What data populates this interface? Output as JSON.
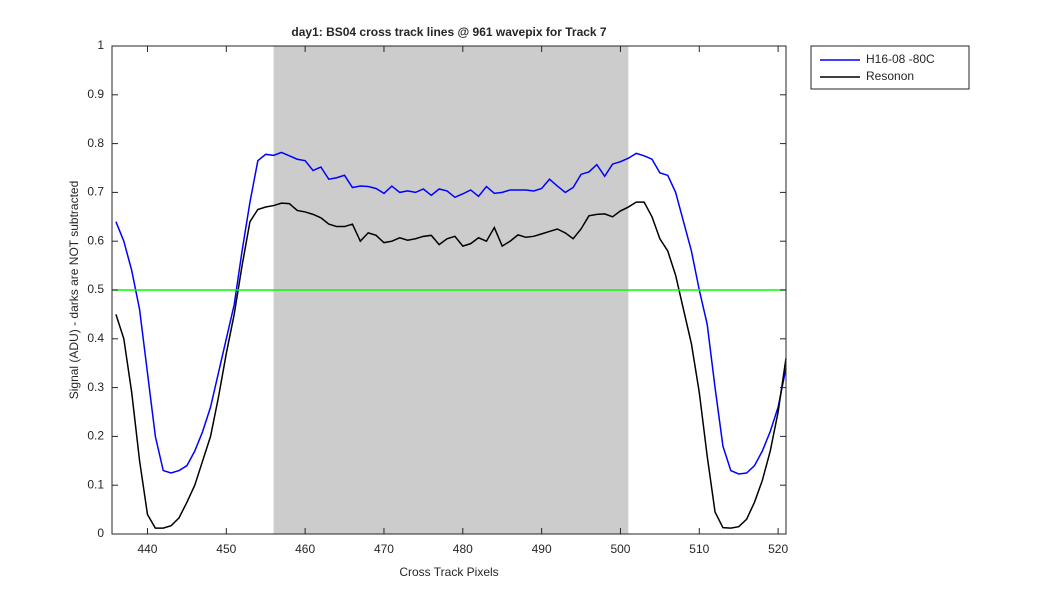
{
  "chart_data": {
    "type": "line",
    "title": "day1: BS04  cross track lines @ 961 wavepix for Track 7",
    "xlabel": "Cross Track Pixels",
    "ylabel": "Signal (ADU) - darks are NOT subtracted",
    "x": [
      436,
      437,
      438,
      439,
      440,
      441,
      442,
      443,
      444,
      445,
      446,
      447,
      448,
      449,
      450,
      451,
      452,
      453,
      454,
      455,
      456,
      457,
      458,
      459,
      460,
      461,
      462,
      463,
      464,
      465,
      466,
      467,
      468,
      469,
      470,
      471,
      472,
      473,
      474,
      475,
      476,
      477,
      478,
      479,
      480,
      481,
      482,
      483,
      484,
      485,
      486,
      487,
      488,
      489,
      490,
      491,
      492,
      493,
      494,
      495,
      496,
      497,
      498,
      499,
      500,
      501,
      502,
      503,
      504,
      505,
      506,
      507,
      508,
      509,
      510,
      511,
      512,
      513,
      514,
      515,
      516,
      517,
      518,
      519,
      520,
      521
    ],
    "series": [
      {
        "name": "H16-08 -80C",
        "color": "#0000ff",
        "values": [
          0.64,
          0.6,
          0.54,
          0.46,
          0.33,
          0.2,
          0.13,
          0.125,
          0.13,
          0.14,
          0.17,
          0.21,
          0.26,
          0.33,
          0.4,
          0.47,
          0.58,
          0.68,
          0.765,
          0.778,
          0.776,
          0.782,
          0.775,
          0.768,
          0.765,
          0.745,
          0.752,
          0.727,
          0.73,
          0.735,
          0.71,
          0.713,
          0.712,
          0.708,
          0.698,
          0.713,
          0.7,
          0.703,
          0.7,
          0.707,
          0.694,
          0.707,
          0.703,
          0.69,
          0.697,
          0.705,
          0.692,
          0.712,
          0.698,
          0.7,
          0.705,
          0.705,
          0.705,
          0.703,
          0.708,
          0.727,
          0.713,
          0.7,
          0.71,
          0.737,
          0.742,
          0.757,
          0.733,
          0.758,
          0.763,
          0.77,
          0.78,
          0.775,
          0.768,
          0.74,
          0.735,
          0.7,
          0.64,
          0.58,
          0.5,
          0.43,
          0.3,
          0.18,
          0.13,
          0.123,
          0.125,
          0.14,
          0.17,
          0.21,
          0.26,
          0.34
        ]
      },
      {
        "name": "Resonon",
        "color": "#000000",
        "values": [
          0.45,
          0.4,
          0.29,
          0.15,
          0.04,
          0.012,
          0.012,
          0.017,
          0.033,
          0.065,
          0.1,
          0.15,
          0.2,
          0.28,
          0.37,
          0.45,
          0.55,
          0.64,
          0.665,
          0.67,
          0.673,
          0.678,
          0.677,
          0.663,
          0.66,
          0.655,
          0.648,
          0.635,
          0.63,
          0.63,
          0.635,
          0.6,
          0.617,
          0.612,
          0.597,
          0.6,
          0.607,
          0.602,
          0.605,
          0.61,
          0.612,
          0.593,
          0.605,
          0.61,
          0.59,
          0.595,
          0.607,
          0.6,
          0.628,
          0.59,
          0.6,
          0.613,
          0.608,
          0.61,
          0.615,
          0.62,
          0.625,
          0.617,
          0.605,
          0.625,
          0.652,
          0.655,
          0.656,
          0.65,
          0.662,
          0.67,
          0.68,
          0.68,
          0.65,
          0.605,
          0.58,
          0.53,
          0.46,
          0.39,
          0.29,
          0.16,
          0.045,
          0.013,
          0.012,
          0.015,
          0.03,
          0.065,
          0.11,
          0.17,
          0.25,
          0.36
        ]
      }
    ],
    "shaded_span": [
      456,
      501
    ],
    "shaded_color": "#cccccc",
    "hline": 0.5,
    "hline_color": "#00ff00",
    "xlim": [
      435.5,
      521
    ],
    "xticks": [
      440,
      450,
      460,
      470,
      480,
      490,
      500,
      510,
      520
    ],
    "ylim": [
      0,
      1
    ],
    "yticks": [
      0,
      0.1,
      0.2,
      0.3,
      0.4,
      0.5,
      0.6,
      0.7,
      0.8,
      0.9,
      1
    ],
    "legend": "outside-top-right"
  }
}
